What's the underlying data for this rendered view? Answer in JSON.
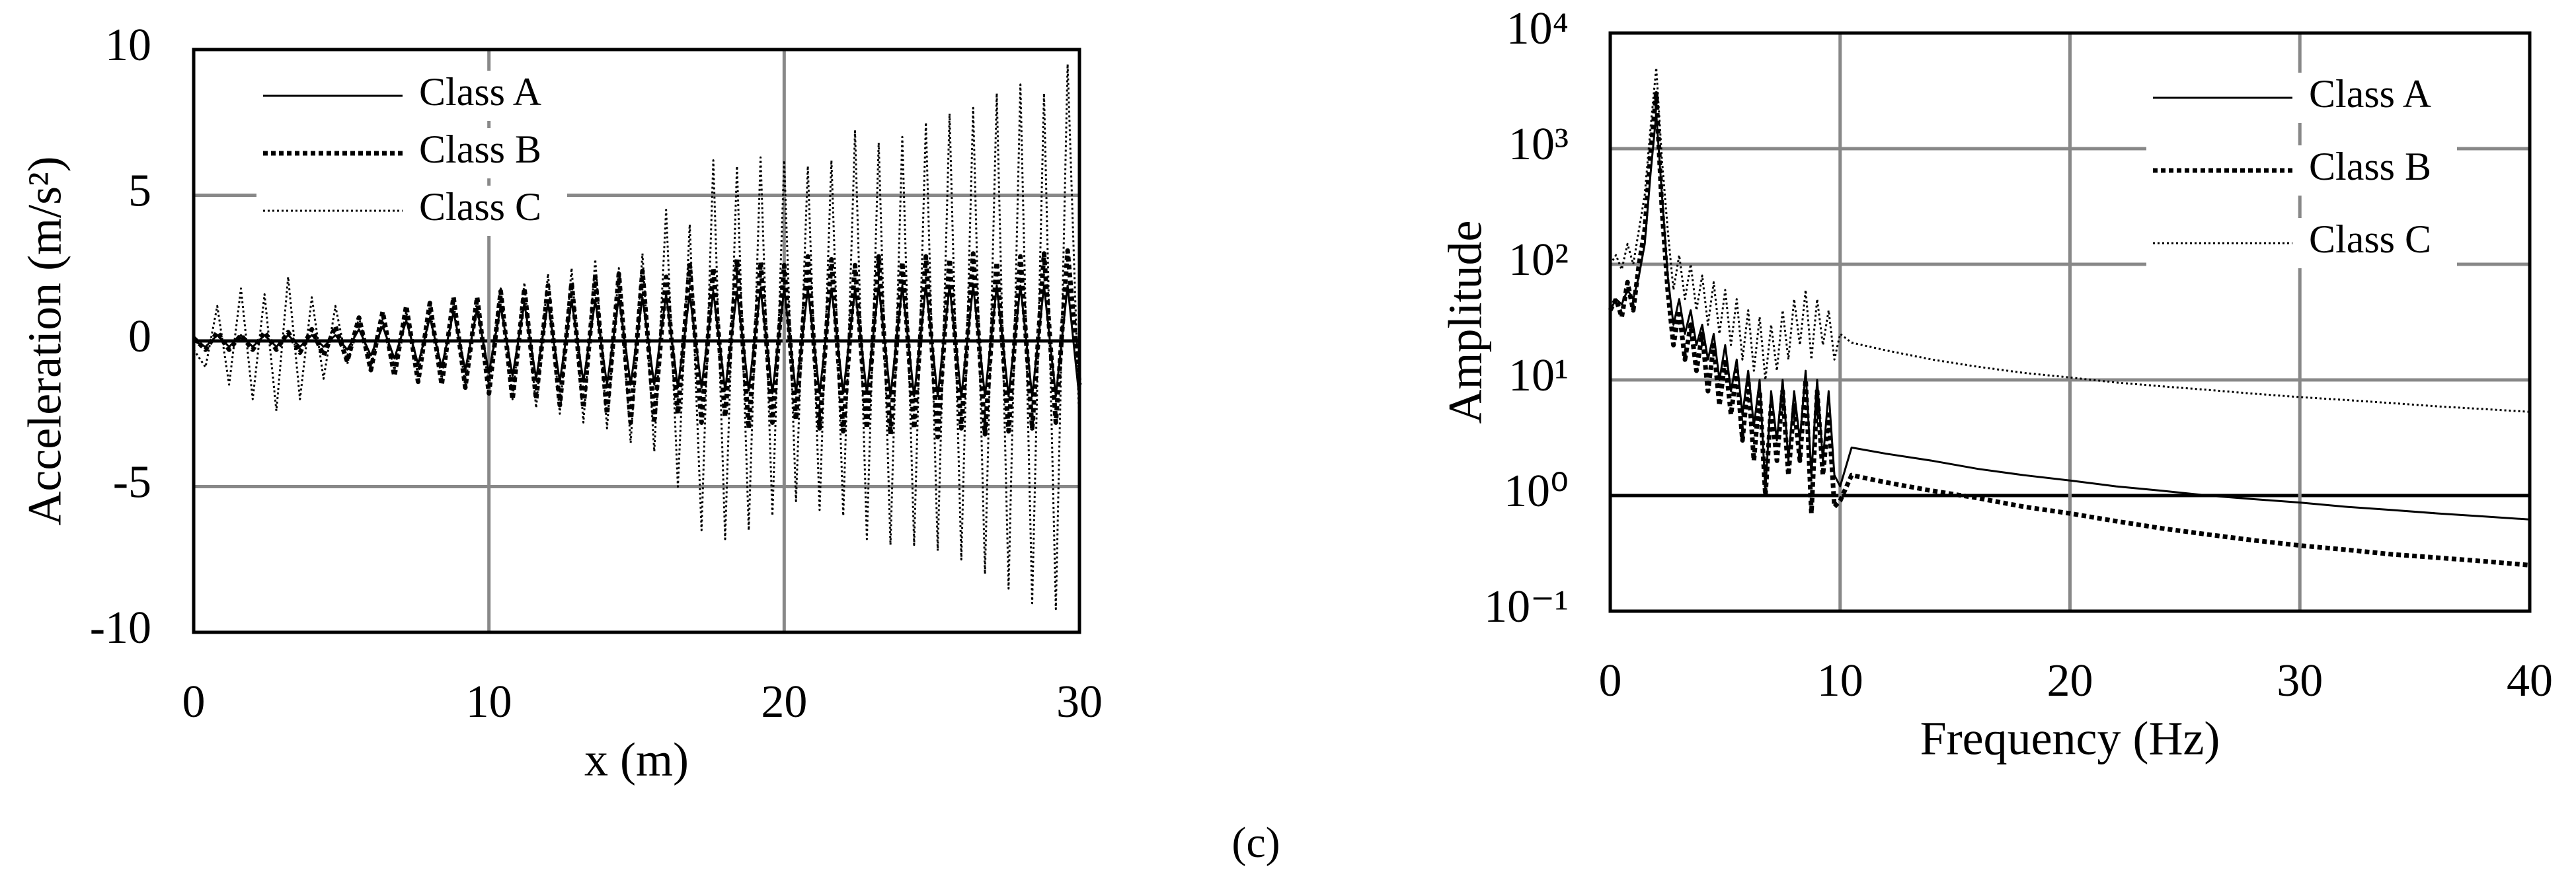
{
  "chart_data": [
    {
      "type": "line",
      "xlabel": "x (m)",
      "ylabel": "Acceleration (m/s²)",
      "xlim": [
        0,
        30
      ],
      "xticks": [
        0,
        10,
        20,
        30
      ],
      "ylim": [
        -10,
        10
      ],
      "yticks": [
        -10,
        -5,
        0,
        5,
        10
      ],
      "grid": true,
      "legend": "upper left",
      "x": [
        0,
        0.4,
        0.8,
        1.2,
        1.6,
        2,
        2.4,
        2.8,
        3.2,
        3.6,
        4,
        4.4,
        4.8,
        5.2,
        5.6,
        6,
        6.4,
        6.8,
        7.2,
        7.6,
        8,
        8.4,
        8.8,
        9.2,
        9.6,
        10,
        10.4,
        10.8,
        11.2,
        11.6,
        12,
        12.4,
        12.8,
        13.2,
        13.6,
        14,
        14.4,
        14.8,
        15.2,
        15.6,
        16,
        16.4,
        16.8,
        17.2,
        17.6,
        18,
        18.4,
        18.8,
        19.2,
        19.6,
        20,
        20.4,
        20.8,
        21.2,
        21.6,
        22,
        22.4,
        22.8,
        23.2,
        23.6,
        24,
        24.4,
        24.8,
        25.2,
        25.6,
        26,
        26.4,
        26.8,
        27.2,
        27.6,
        28,
        28.4,
        28.8,
        29.2,
        29.6,
        30
      ],
      "series": [
        {
          "name": "Class A",
          "color": "#000000",
          "dash": "solid",
          "values": [
            0,
            -0.2,
            0.2,
            -0.2,
            0.2,
            -0.2,
            0.2,
            -0.2,
            0.2,
            -0.2,
            0.2,
            -0.2,
            0.2,
            -0.3,
            0.4,
            -0.5,
            0.5,
            -0.6,
            0.7,
            -0.8,
            0.8,
            -0.9,
            1.0,
            -1.0,
            1.1,
            -1.1,
            1.2,
            -1.2,
            1.3,
            -1.3,
            1.3,
            -1.4,
            1.4,
            -1.4,
            1.4,
            -1.5,
            1.5,
            -1.5,
            1.5,
            -1.5,
            1.6,
            -1.6,
            1.6,
            -1.6,
            1.7,
            -1.7,
            1.7,
            -1.7,
            1.8,
            -1.8,
            1.8,
            -1.8,
            1.8,
            -1.8,
            1.8,
            -1.8,
            1.8,
            -1.8,
            1.9,
            -1.9,
            1.9,
            -1.9,
            1.9,
            -1.9,
            1.9,
            -1.9,
            1.9,
            -1.9,
            1.9,
            -1.9,
            1.9,
            -1.9,
            1.9,
            -1.9,
            1.9,
            -2.0
          ]
        },
        {
          "name": "Class B",
          "color": "#000000",
          "dash": "dotted",
          "values": [
            0.1,
            -0.3,
            0.3,
            -0.3,
            0.2,
            -0.3,
            0.3,
            -0.3,
            0.3,
            -0.4,
            0.4,
            -0.5,
            0.5,
            -0.7,
            0.8,
            -1.0,
            1.0,
            -1.2,
            1.2,
            -1.4,
            1.3,
            -1.5,
            1.5,
            -1.6,
            1.5,
            -1.8,
            1.7,
            -2.0,
            1.8,
            -2.0,
            1.9,
            -2.2,
            2.0,
            -2.3,
            2.2,
            -2.5,
            2.3,
            -2.8,
            2.4,
            -2.7,
            2.2,
            -2.5,
            2.6,
            -2.8,
            2.5,
            -2.6,
            2.8,
            -3.0,
            2.7,
            -2.8,
            2.6,
            -2.7,
            2.9,
            -3.0,
            2.8,
            -3.1,
            2.6,
            -3.0,
            2.9,
            -3.2,
            2.7,
            -3.0,
            2.9,
            -3.3,
            2.8,
            -3.0,
            3.0,
            -3.2,
            2.7,
            -3.1,
            2.9,
            -3.0,
            3.0,
            -2.8,
            3.1,
            -1.5
          ]
        },
        {
          "name": "Class C",
          "color": "#000000",
          "dash": "fine-dotted",
          "values": [
            -0.3,
            -0.9,
            1.2,
            -1.5,
            1.8,
            -2.0,
            1.6,
            -2.4,
            2.2,
            -2.0,
            1.5,
            -1.3,
            1.2,
            -0.8,
            0.8,
            -0.9,
            0.7,
            -1.0,
            1.0,
            -1.2,
            1.1,
            -1.3,
            1.3,
            -1.5,
            1.4,
            -1.6,
            1.8,
            -2.0,
            2.0,
            -2.3,
            2.3,
            -2.5,
            2.5,
            -2.8,
            2.8,
            -3.0,
            2.5,
            -3.5,
            3.0,
            -3.8,
            4.5,
            -5.0,
            4.0,
            -6.5,
            6.2,
            -6.8,
            6.0,
            -6.5,
            6.3,
            -6.0,
            6.2,
            -5.5,
            6.0,
            -5.8,
            6.2,
            -6.0,
            7.2,
            -6.8,
            6.8,
            -7.0,
            7.0,
            -7.0,
            7.5,
            -7.2,
            7.8,
            -7.5,
            8.0,
            -8.0,
            8.5,
            -8.5,
            8.8,
            -9.0,
            8.5,
            -9.2,
            9.5,
            -3.0
          ]
        }
      ]
    },
    {
      "type": "line",
      "xlabel": "Frequency (Hz)",
      "ylabel": "Amplitude",
      "yscale": "log",
      "xlim": [
        0,
        40
      ],
      "xticks": [
        0,
        10,
        20,
        30,
        40
      ],
      "ylim": [
        0.1,
        10000
      ],
      "yticks": [
        {
          "value": 0.1,
          "label": "10⁻¹"
        },
        {
          "value": 1,
          "label": "10⁰"
        },
        {
          "value": 10,
          "label": "10¹"
        },
        {
          "value": 100,
          "label": "10²"
        },
        {
          "value": 1000,
          "label": "10³"
        },
        {
          "value": 10000,
          "label": "10⁴"
        }
      ],
      "grid": true,
      "legend": "upper right",
      "x": [
        0,
        0.25,
        0.5,
        0.75,
        1,
        1.25,
        1.5,
        1.75,
        2,
        2.25,
        2.5,
        2.75,
        3,
        3.25,
        3.5,
        3.75,
        4,
        4.25,
        4.5,
        4.75,
        5,
        5.25,
        5.5,
        5.75,
        6,
        6.25,
        6.5,
        6.75,
        7,
        7.25,
        7.5,
        7.75,
        8,
        8.25,
        8.5,
        8.75,
        9,
        9.25,
        9.5,
        9.75,
        10,
        10.5,
        12,
        14,
        16,
        18,
        20,
        22,
        24,
        26,
        28,
        30,
        32,
        34,
        36,
        38,
        40
      ],
      "series": [
        {
          "name": "Class A",
          "color": "#000000",
          "dash": "solid",
          "values": [
            40,
            50,
            45,
            60,
            50,
            80,
            150,
            600,
            2000,
            400,
            80,
            30,
            50,
            25,
            40,
            20,
            30,
            15,
            25,
            10,
            20,
            8,
            15,
            5,
            12,
            4,
            10,
            1.1,
            8,
            3,
            10,
            2,
            8,
            3,
            12,
            1.5,
            10,
            2,
            8,
            1.5,
            1.2,
            2.6,
            2.3,
            2.0,
            1.7,
            1.5,
            1.35,
            1.2,
            1.1,
            1.0,
            0.93,
            0.87,
            0.8,
            0.75,
            0.7,
            0.66,
            0.62
          ]
        },
        {
          "name": "Class B",
          "color": "#000000",
          "dash": "dotted",
          "values": [
            40,
            50,
            35,
            70,
            40,
            100,
            200,
            900,
            3000,
            300,
            60,
            20,
            40,
            15,
            30,
            12,
            25,
            8,
            20,
            6,
            15,
            5,
            12,
            3,
            10,
            2,
            8,
            1,
            6,
            2,
            8,
            1.5,
            6,
            2,
            10,
            0.7,
            8,
            1.5,
            5,
            0.8,
            0.9,
            1.5,
            1.3,
            1.1,
            0.95,
            0.8,
            0.7,
            0.6,
            0.52,
            0.46,
            0.41,
            0.37,
            0.34,
            0.31,
            0.29,
            0.27,
            0.25
          ]
        },
        {
          "name": "Class C",
          "color": "#000000",
          "dash": "fine-dotted",
          "values": [
            100,
            120,
            90,
            150,
            100,
            200,
            400,
            1500,
            5000,
            800,
            200,
            60,
            120,
            50,
            100,
            40,
            80,
            30,
            70,
            25,
            60,
            20,
            50,
            15,
            40,
            12,
            35,
            10,
            30,
            12,
            40,
            15,
            50,
            20,
            60,
            15,
            50,
            20,
            40,
            15,
            25,
            21,
            18,
            15,
            13,
            11.5,
            10.5,
            9.5,
            8.8,
            8.2,
            7.6,
            7.1,
            6.7,
            6.3,
            5.9,
            5.6,
            5.3
          ]
        }
      ]
    }
  ],
  "caption": "(c)"
}
